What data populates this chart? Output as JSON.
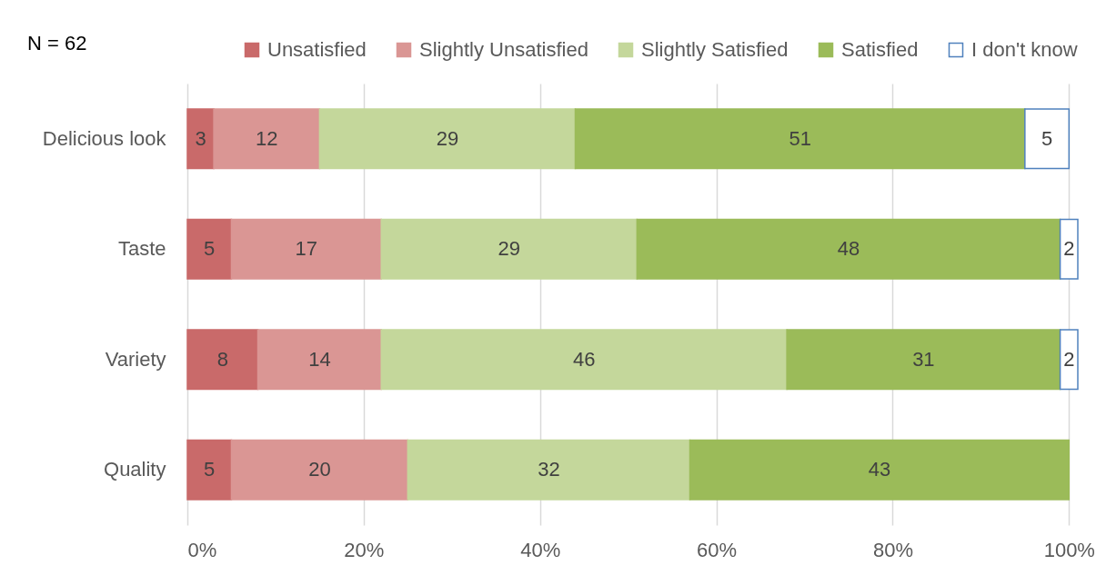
{
  "chart_data": {
    "type": "bar",
    "orientation": "horizontal",
    "stacked": true,
    "categories": [
      "Delicious look",
      "Taste",
      "Variety",
      "Quality"
    ],
    "series": [
      {
        "name": "Unsatisfied",
        "color": "#c96a6a",
        "values": [
          3,
          5,
          8,
          5
        ]
      },
      {
        "name": "Slightly Unsatisfied",
        "color": "#da9694",
        "values": [
          12,
          17,
          14,
          20
        ]
      },
      {
        "name": "Slightly Satisfied",
        "color": "#c4d79b",
        "values": [
          29,
          29,
          46,
          32
        ]
      },
      {
        "name": "Satisfied",
        "color": "#9bbb59",
        "values": [
          51,
          48,
          31,
          43
        ]
      },
      {
        "name": "I don't know",
        "color": "#ffffff",
        "values": [
          5,
          2,
          2,
          null
        ]
      }
    ],
    "xlim": [
      0,
      101
    ],
    "xticks": [
      {
        "value": 0,
        "label": "0%"
      },
      {
        "value": 20,
        "label": "20%"
      },
      {
        "value": 40,
        "label": "40%"
      },
      {
        "value": 60,
        "label": "60%"
      },
      {
        "value": 80,
        "label": "80%"
      },
      {
        "value": 100,
        "label": "100%"
      }
    ],
    "data_labels": true,
    "grid": "x",
    "legend": "top right",
    "annotations": [
      "N = 62"
    ]
  }
}
